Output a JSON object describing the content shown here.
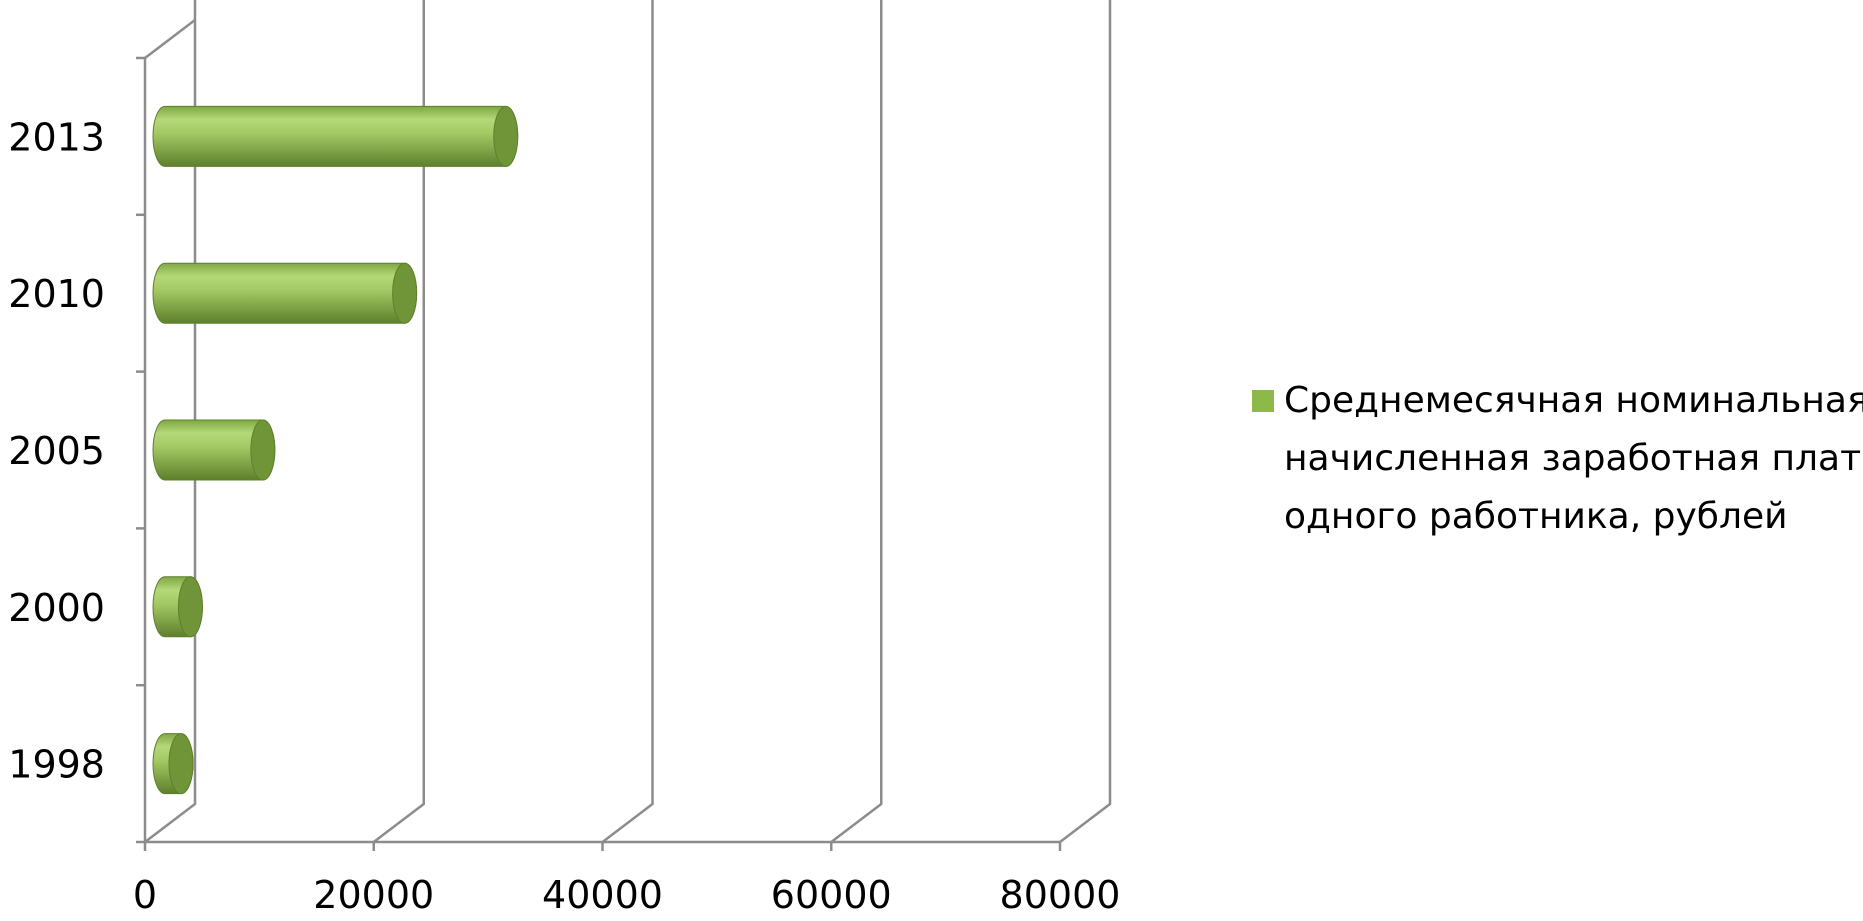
{
  "chart_data": {
    "type": "bar",
    "orientation": "horizontal",
    "style": "3d-cylinder",
    "categories": [
      "1998",
      "2000",
      "2005",
      "2010",
      "2013"
    ],
    "series": [
      {
        "name": "Среднемесячная номинальная начисленная заработная плата одного работника, рублей",
        "name_lines": [
          "Среднемесячная номинальная",
          "начисленная заработная плата",
          "одного работника, рублей"
        ],
        "values": [
          1052,
          2223,
          8555,
          20952,
          29792
        ]
      }
    ],
    "xlim": [
      0,
      80000
    ],
    "xticks": [
      "0",
      "20000",
      "40000",
      "60000",
      "80000"
    ],
    "title": "",
    "xlabel": "",
    "ylabel": "",
    "grid": true,
    "legend_position": "right",
    "colors": {
      "bar_light": "#B5D878",
      "bar_mid": "#8DB84A",
      "bar_dark": "#5E7F2C",
      "bar_cap": "#6F9538",
      "legend_swatch": "#8DB84A",
      "gridline": "#8C8C8C",
      "axis": "#8C8C8C"
    }
  }
}
